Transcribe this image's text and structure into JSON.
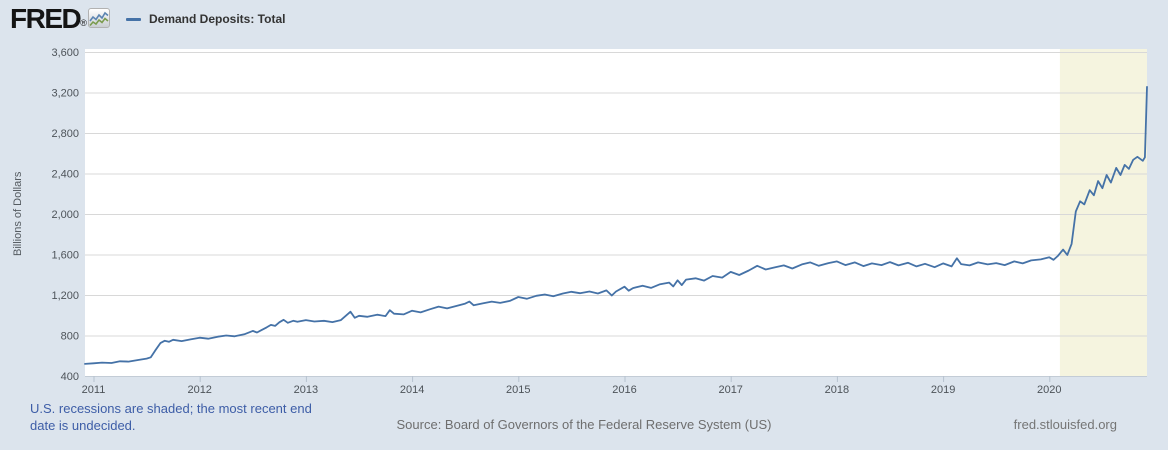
{
  "header": {
    "logo_text": "FRED",
    "logo_registered": "®",
    "legend": {
      "swatch_color": "#4572a7",
      "label": "Demand Deposits: Total"
    }
  },
  "footer": {
    "recession_note": "U.S. recessions are shaded; the most recent end date is undecided.",
    "source": "Source: Board of Governors of the Federal Reserve System (US)",
    "site": "fred.stlouisfed.org"
  },
  "chart_data": {
    "type": "line",
    "series_name": "Demand Deposits: Total",
    "ylabel": "Billions of Dollars",
    "line_color": "#4572a7",
    "plot_bg": "#ffffff",
    "page_bg": "#dce4ed",
    "grid_color": "#d8d8d8",
    "axis_line_color": "#c3ccd6",
    "tick_mark_color": "#b6c2cf",
    "tick_label_color": "#4d5359",
    "legend_position": "top-left",
    "grid": "horizontal-only",
    "x_domain": [
      2010.92,
      2020.92
    ],
    "y_domain": [
      400,
      3600
    ],
    "x_ticks": [
      2011,
      2012,
      2013,
      2014,
      2015,
      2016,
      2017,
      2018,
      2019,
      2020
    ],
    "y_ticks": [
      400,
      800,
      1200,
      1600,
      2000,
      2400,
      2800,
      3200,
      3600
    ],
    "y_tick_labels": [
      "400",
      "800",
      "1,200",
      "1,600",
      "2,000",
      "2,400",
      "2,800",
      "3,200",
      "3,600"
    ],
    "recession_band": {
      "from": 2020.1,
      "to": 2020.92,
      "color": "#f5f4df"
    },
    "x": [
      2010.92,
      2011.0,
      2011.08,
      2011.17,
      2011.25,
      2011.33,
      2011.42,
      2011.5,
      2011.54,
      2011.58,
      2011.63,
      2011.67,
      2011.71,
      2011.75,
      2011.83,
      2011.92,
      2012.0,
      2012.08,
      2012.17,
      2012.25,
      2012.33,
      2012.42,
      2012.5,
      2012.54,
      2012.58,
      2012.63,
      2012.67,
      2012.71,
      2012.75,
      2012.79,
      2012.83,
      2012.88,
      2012.92,
      2013.0,
      2013.08,
      2013.17,
      2013.25,
      2013.33,
      2013.42,
      2013.46,
      2013.5,
      2013.58,
      2013.67,
      2013.75,
      2013.79,
      2013.83,
      2013.92,
      2014.0,
      2014.08,
      2014.17,
      2014.25,
      2014.33,
      2014.42,
      2014.5,
      2014.54,
      2014.58,
      2014.67,
      2014.75,
      2014.83,
      2014.92,
      2015.0,
      2015.08,
      2015.17,
      2015.25,
      2015.33,
      2015.42,
      2015.5,
      2015.58,
      2015.67,
      2015.75,
      2015.83,
      2015.88,
      2015.92,
      2016.0,
      2016.04,
      2016.08,
      2016.17,
      2016.25,
      2016.33,
      2016.42,
      2016.46,
      2016.5,
      2016.54,
      2016.58,
      2016.67,
      2016.75,
      2016.83,
      2016.92,
      2017.0,
      2017.08,
      2017.17,
      2017.25,
      2017.33,
      2017.42,
      2017.5,
      2017.58,
      2017.67,
      2017.75,
      2017.83,
      2017.92,
      2018.0,
      2018.08,
      2018.17,
      2018.25,
      2018.33,
      2018.42,
      2018.5,
      2018.58,
      2018.67,
      2018.75,
      2018.83,
      2018.92,
      2019.0,
      2019.08,
      2019.13,
      2019.17,
      2019.25,
      2019.33,
      2019.42,
      2019.5,
      2019.58,
      2019.67,
      2019.75,
      2019.83,
      2019.92,
      2020.0,
      2020.04,
      2020.08,
      2020.13,
      2020.17,
      2020.21,
      2020.25,
      2020.29,
      2020.33,
      2020.38,
      2020.42,
      2020.46,
      2020.5,
      2020.54,
      2020.58,
      2020.63,
      2020.67,
      2020.71,
      2020.75,
      2020.79,
      2020.83,
      2020.88,
      2020.9,
      2020.92
    ],
    "values": [
      520,
      525,
      532,
      528,
      545,
      542,
      558,
      572,
      585,
      650,
      725,
      748,
      738,
      758,
      745,
      762,
      778,
      768,
      788,
      800,
      792,
      812,
      845,
      830,
      852,
      880,
      905,
      895,
      930,
      955,
      925,
      945,
      935,
      952,
      938,
      945,
      932,
      952,
      1035,
      975,
      995,
      985,
      1005,
      992,
      1050,
      1015,
      1008,
      1045,
      1028,
      1060,
      1085,
      1068,
      1092,
      1115,
      1135,
      1098,
      1118,
      1135,
      1122,
      1142,
      1180,
      1162,
      1192,
      1205,
      1188,
      1215,
      1232,
      1218,
      1235,
      1215,
      1245,
      1195,
      1235,
      1282,
      1242,
      1268,
      1292,
      1270,
      1305,
      1322,
      1285,
      1345,
      1298,
      1352,
      1365,
      1342,
      1388,
      1372,
      1428,
      1398,
      1442,
      1488,
      1452,
      1475,
      1492,
      1462,
      1502,
      1522,
      1488,
      1515,
      1532,
      1495,
      1522,
      1485,
      1512,
      1495,
      1525,
      1492,
      1518,
      1482,
      1508,
      1475,
      1512,
      1482,
      1562,
      1505,
      1492,
      1522,
      1502,
      1515,
      1495,
      1532,
      1512,
      1542,
      1552,
      1572,
      1548,
      1585,
      1648,
      1595,
      1705,
      2025,
      2125,
      2095,
      2235,
      2185,
      2325,
      2255,
      2385,
      2310,
      2455,
      2385,
      2485,
      2445,
      2535,
      2565,
      2525,
      2560,
      3255
    ]
  }
}
